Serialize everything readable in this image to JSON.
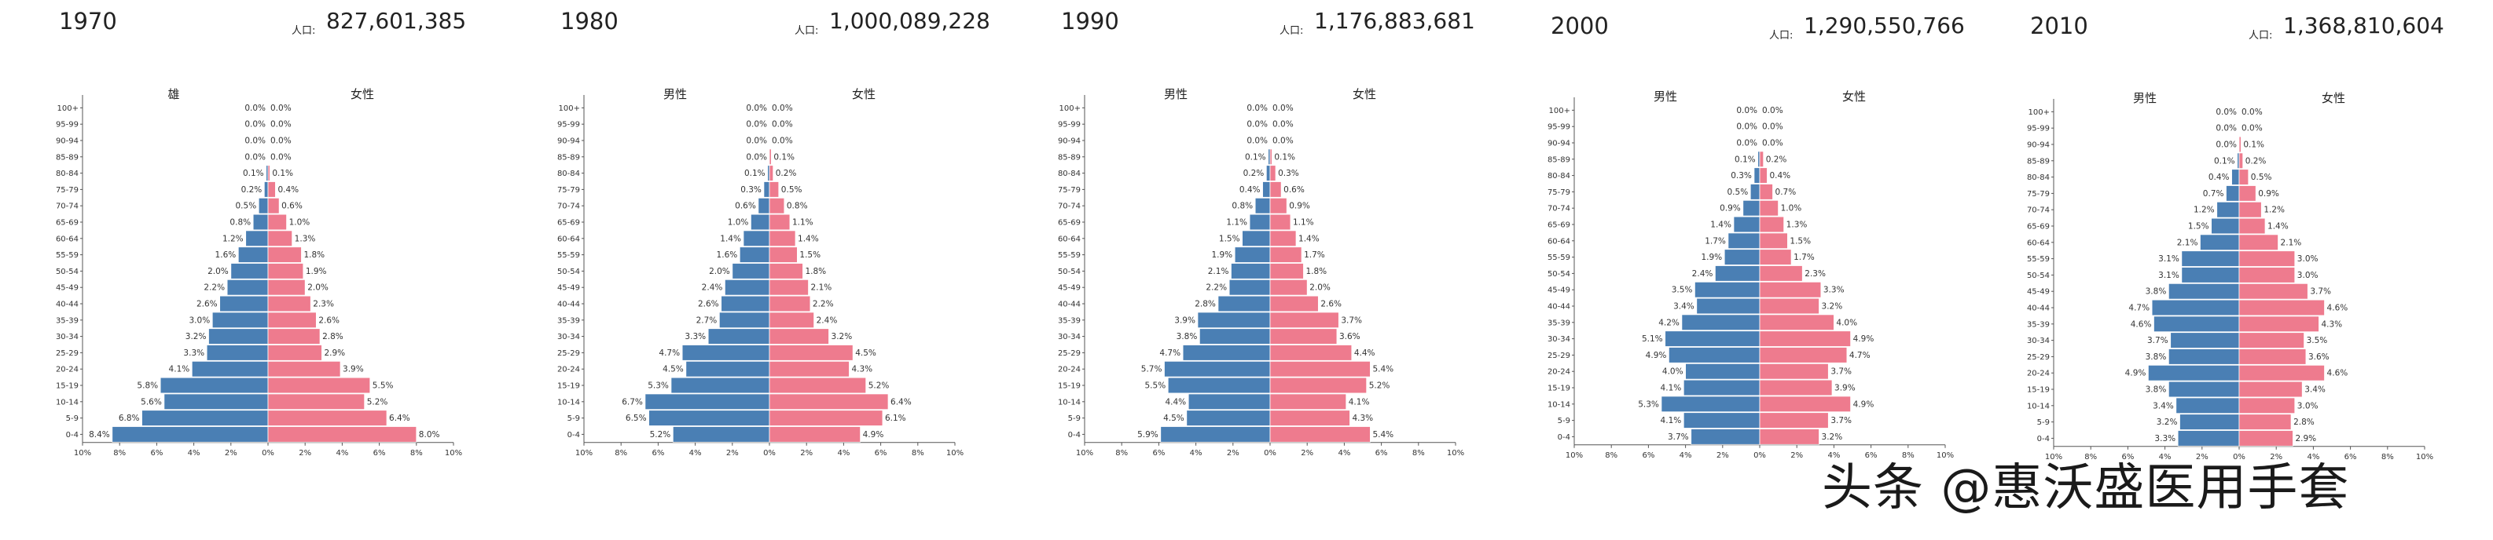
{
  "chart_data": [
    {
      "type": "population_pyramid",
      "year": "1970",
      "population_label": "人口:",
      "population": "827,601,385",
      "male_label": "雄",
      "female_label": "女性",
      "age_groups": [
        "0-4",
        "5-9",
        "10-14",
        "15-19",
        "20-24",
        "25-29",
        "30-34",
        "35-39",
        "40-44",
        "45-49",
        "50-54",
        "55-59",
        "60-64",
        "65-69",
        "70-74",
        "75-79",
        "80-84",
        "85-89",
        "90-94",
        "95-99",
        "100+"
      ],
      "male": [
        8.4,
        6.8,
        5.6,
        5.8,
        4.1,
        3.3,
        3.2,
        3.0,
        2.6,
        2.2,
        2.0,
        1.6,
        1.2,
        0.8,
        0.5,
        0.2,
        0.1,
        0.0,
        0.0,
        0.0,
        0.0
      ],
      "female": [
        8.0,
        6.4,
        5.2,
        5.5,
        3.9,
        2.9,
        2.8,
        2.6,
        2.3,
        2.0,
        1.9,
        1.8,
        1.3,
        1.0,
        0.6,
        0.4,
        0.1,
        0.0,
        0.0,
        0.0,
        0.0
      ],
      "x_ticks": [
        "10%",
        "8%",
        "6%",
        "4%",
        "2%",
        "0%",
        "2%",
        "4%",
        "6%",
        "8%",
        "10%"
      ],
      "xlim": [
        -10,
        10
      ]
    },
    {
      "type": "population_pyramid",
      "year": "1980",
      "population_label": "人口:",
      "population": "1,000,089,228",
      "male_label": "男性",
      "female_label": "女性",
      "age_groups": [
        "0-4",
        "5-9",
        "10-14",
        "15-19",
        "20-24",
        "25-29",
        "30-34",
        "35-39",
        "40-44",
        "45-49",
        "50-54",
        "55-59",
        "60-64",
        "65-69",
        "70-74",
        "75-79",
        "80-84",
        "85-89",
        "90-94",
        "95-99",
        "100+"
      ],
      "male": [
        5.2,
        6.5,
        6.7,
        5.3,
        4.5,
        4.7,
        3.3,
        2.7,
        2.6,
        2.4,
        2.0,
        1.6,
        1.4,
        1.0,
        0.6,
        0.3,
        0.1,
        0.0,
        0.0,
        0.0,
        0.0
      ],
      "female": [
        4.9,
        6.1,
        6.4,
        5.2,
        4.3,
        4.5,
        3.2,
        2.4,
        2.2,
        2.1,
        1.8,
        1.5,
        1.4,
        1.1,
        0.8,
        0.5,
        0.2,
        0.1,
        0.0,
        0.0,
        0.0
      ],
      "x_ticks": [
        "10%",
        "8%",
        "6%",
        "4%",
        "2%",
        "0%",
        "2%",
        "4%",
        "6%",
        "8%",
        "10%"
      ],
      "xlim": [
        -10,
        10
      ]
    },
    {
      "type": "population_pyramid",
      "year": "1990",
      "population_label": "人口:",
      "population": "1,176,883,681",
      "male_label": "男性",
      "female_label": "女性",
      "age_groups": [
        "0-4",
        "5-9",
        "10-14",
        "15-19",
        "20-24",
        "25-29",
        "30-34",
        "35-39",
        "40-44",
        "45-49",
        "50-54",
        "55-59",
        "60-64",
        "65-69",
        "70-74",
        "75-79",
        "80-84",
        "85-89",
        "90-94",
        "95-99",
        "100+"
      ],
      "male": [
        5.9,
        4.5,
        4.4,
        5.5,
        5.7,
        4.7,
        3.8,
        3.9,
        2.8,
        2.2,
        2.1,
        1.9,
        1.5,
        1.1,
        0.8,
        0.4,
        0.2,
        0.1,
        0.0,
        0.0,
        0.0
      ],
      "female": [
        5.4,
        4.3,
        4.1,
        5.2,
        5.4,
        4.4,
        3.6,
        3.7,
        2.6,
        2.0,
        1.8,
        1.7,
        1.4,
        1.1,
        0.9,
        0.6,
        0.3,
        0.1,
        0.0,
        0.0,
        0.0
      ],
      "x_ticks": [
        "10%",
        "8%",
        "6%",
        "4%",
        "2%",
        "0%",
        "2%",
        "4%",
        "6%",
        "8%",
        "10%"
      ],
      "xlim": [
        -10,
        10
      ]
    },
    {
      "type": "population_pyramid",
      "year": "2000",
      "population_label": "人口:",
      "population": "1,290,550,766",
      "male_label": "男性",
      "female_label": "女性",
      "age_groups": [
        "0-4",
        "5-9",
        "10-14",
        "15-19",
        "20-24",
        "25-29",
        "30-34",
        "35-39",
        "40-44",
        "45-49",
        "50-54",
        "55-59",
        "60-64",
        "65-69",
        "70-74",
        "75-79",
        "80-84",
        "85-89",
        "90-94",
        "95-99",
        "100+"
      ],
      "male": [
        3.7,
        4.1,
        5.3,
        4.1,
        4.0,
        4.9,
        5.1,
        4.2,
        3.4,
        3.5,
        2.4,
        1.9,
        1.7,
        1.4,
        0.9,
        0.5,
        0.3,
        0.1,
        0.0,
        0.0,
        0.0
      ],
      "female": [
        3.2,
        3.7,
        4.9,
        3.9,
        3.7,
        4.7,
        4.9,
        4.0,
        3.2,
        3.3,
        2.3,
        1.7,
        1.5,
        1.3,
        1.0,
        0.7,
        0.4,
        0.2,
        0.0,
        0.0,
        0.0
      ],
      "x_ticks": [
        "10%",
        "8%",
        "6%",
        "4%",
        "2%",
        "0%",
        "2%",
        "4%",
        "6%",
        "8%",
        "10%"
      ],
      "xlim": [
        -10,
        10
      ]
    },
    {
      "type": "population_pyramid",
      "year": "2010",
      "population_label": "人口:",
      "population": "1,368,810,604",
      "male_label": "男性",
      "female_label": "女性",
      "age_groups": [
        "0-4",
        "5-9",
        "10-14",
        "15-19",
        "20-24",
        "25-29",
        "30-34",
        "35-39",
        "40-44",
        "45-49",
        "50-54",
        "55-59",
        "60-64",
        "65-69",
        "70-74",
        "75-79",
        "80-84",
        "85-89",
        "90-94",
        "95-99",
        "100+"
      ],
      "male": [
        3.3,
        3.2,
        3.4,
        3.8,
        4.9,
        3.8,
        3.7,
        4.6,
        4.7,
        3.8,
        3.1,
        3.1,
        2.1,
        1.5,
        1.2,
        0.7,
        0.4,
        0.1,
        0.0,
        0.0,
        0.0
      ],
      "female": [
        2.9,
        2.8,
        3.0,
        3.4,
        4.6,
        3.6,
        3.5,
        4.3,
        4.6,
        3.7,
        3.0,
        3.0,
        2.1,
        1.4,
        1.2,
        0.9,
        0.5,
        0.2,
        0.1,
        0.0,
        0.0
      ],
      "x_ticks": [
        "10%",
        "8%",
        "6%",
        "4%",
        "2%",
        "0%",
        "2%",
        "4%",
        "6%",
        "8%",
        "10%"
      ],
      "xlim": [
        -10,
        10
      ]
    }
  ],
  "colors": {
    "male": "#4a7fb4",
    "female": "#ee7b8e",
    "axis": "#555555"
  },
  "watermark": "头条 @惠沃盛医用手套"
}
